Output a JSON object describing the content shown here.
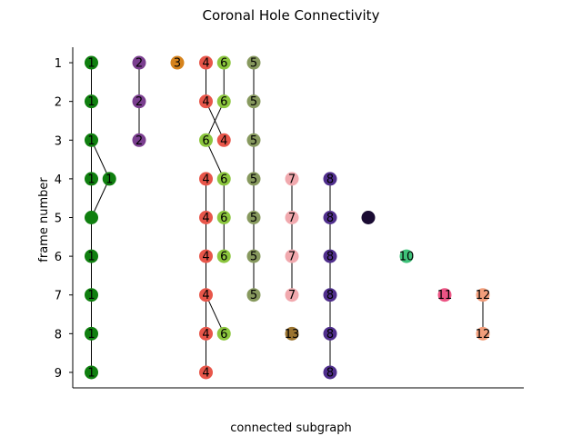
{
  "chart_data": {
    "type": "scatter",
    "title": "Coronal Hole Connectivity",
    "xlabel": "connected subgraph",
    "ylabel": "frame number",
    "ylim": [
      9.4,
      0.6
    ],
    "xlim": [
      0,
      11
    ],
    "yticks": [
      1,
      2,
      3,
      4,
      5,
      6,
      7,
      8,
      9
    ],
    "grid": false,
    "legend": "none",
    "series": [
      {
        "id": "1",
        "color": "#0f7f0f",
        "nodes": [
          {
            "x": 0.25,
            "y": 1,
            "label": "1"
          },
          {
            "x": 0.25,
            "y": 2,
            "label": "1"
          },
          {
            "x": 0.25,
            "y": 3,
            "label": "1"
          },
          {
            "x": 0.25,
            "y": 4,
            "label": "1"
          },
          {
            "x": 0.72,
            "y": 4,
            "label": "1"
          },
          {
            "x": 0.25,
            "y": 5,
            "label": ""
          },
          {
            "x": 0.25,
            "y": 6,
            "label": "1"
          },
          {
            "x": 0.25,
            "y": 7,
            "label": "1"
          },
          {
            "x": 0.25,
            "y": 8,
            "label": "1"
          },
          {
            "x": 0.25,
            "y": 9,
            "label": "1"
          }
        ],
        "edges": [
          [
            0,
            1
          ],
          [
            1,
            2
          ],
          [
            2,
            3
          ],
          [
            2,
            4
          ],
          [
            3,
            5
          ],
          [
            4,
            5
          ],
          [
            5,
            6
          ],
          [
            6,
            7
          ],
          [
            7,
            8
          ],
          [
            8,
            9
          ]
        ]
      },
      {
        "id": "2",
        "color": "#7a3e8f",
        "nodes": [
          {
            "x": 1.5,
            "y": 1,
            "label": "2"
          },
          {
            "x": 1.5,
            "y": 2,
            "label": "2"
          },
          {
            "x": 1.5,
            "y": 3,
            "label": "2"
          }
        ],
        "edges": [
          [
            0,
            1
          ],
          [
            1,
            2
          ]
        ]
      },
      {
        "id": "3",
        "color": "#d6831c",
        "nodes": [
          {
            "x": 2.5,
            "y": 1,
            "label": "3"
          }
        ],
        "edges": []
      },
      {
        "id": "4",
        "color": "#e8564a",
        "nodes": [
          {
            "x": 3.25,
            "y": 1,
            "label": "4"
          },
          {
            "x": 3.25,
            "y": 2,
            "label": "4"
          },
          {
            "x": 3.72,
            "y": 3,
            "label": "4"
          },
          {
            "x": 3.25,
            "y": 4,
            "label": "4"
          },
          {
            "x": 3.25,
            "y": 5,
            "label": "4"
          },
          {
            "x": 3.25,
            "y": 6,
            "label": "4"
          },
          {
            "x": 3.25,
            "y": 7,
            "label": "4"
          },
          {
            "x": 3.25,
            "y": 8,
            "label": "4"
          },
          {
            "x": 3.25,
            "y": 9,
            "label": "4"
          }
        ],
        "edges": [
          [
            0,
            1
          ],
          [
            1,
            2
          ],
          [
            3,
            4
          ],
          [
            4,
            5
          ],
          [
            5,
            6
          ],
          [
            6,
            7
          ],
          [
            7,
            8
          ]
        ]
      },
      {
        "id": "6",
        "color": "#8cc63e",
        "nodes": [
          {
            "x": 3.72,
            "y": 1,
            "label": "6"
          },
          {
            "x": 3.72,
            "y": 2,
            "label": "6"
          },
          {
            "x": 3.25,
            "y": 3,
            "label": "6"
          },
          {
            "x": 3.72,
            "y": 4,
            "label": "6"
          },
          {
            "x": 3.72,
            "y": 5,
            "label": "6"
          },
          {
            "x": 3.72,
            "y": 6,
            "label": "6"
          },
          {
            "x": 3.72,
            "y": 8,
            "label": "6"
          }
        ],
        "edges": [
          [
            0,
            1
          ],
          [
            1,
            2
          ],
          [
            2,
            3
          ],
          [
            3,
            4
          ],
          [
            4,
            5
          ]
        ]
      },
      {
        "id": "5",
        "color": "#87995e",
        "nodes": [
          {
            "x": 4.5,
            "y": 1,
            "label": "5"
          },
          {
            "x": 4.5,
            "y": 2,
            "label": "5"
          },
          {
            "x": 4.5,
            "y": 3,
            "label": "5"
          },
          {
            "x": 4.5,
            "y": 4,
            "label": "5"
          },
          {
            "x": 4.5,
            "y": 5,
            "label": "5"
          },
          {
            "x": 4.5,
            "y": 6,
            "label": "5"
          },
          {
            "x": 4.5,
            "y": 7,
            "label": "5"
          }
        ],
        "edges": [
          [
            0,
            1
          ],
          [
            1,
            2
          ],
          [
            2,
            3
          ],
          [
            3,
            4
          ],
          [
            4,
            5
          ],
          [
            5,
            6
          ]
        ]
      },
      {
        "id": "7",
        "color": "#f1a9ae",
        "nodes": [
          {
            "x": 5.5,
            "y": 4,
            "label": "7"
          },
          {
            "x": 5.5,
            "y": 5,
            "label": "7"
          },
          {
            "x": 5.5,
            "y": 6,
            "label": "7"
          },
          {
            "x": 5.5,
            "y": 7,
            "label": "7"
          }
        ],
        "edges": [
          [
            0,
            1
          ],
          [
            1,
            2
          ],
          [
            2,
            3
          ]
        ]
      },
      {
        "id": "13",
        "color": "#9b7430",
        "nodes": [
          {
            "x": 5.5,
            "y": 8,
            "label": "13"
          }
        ],
        "edges": []
      },
      {
        "id": "8",
        "color": "#4f2e8c",
        "nodes": [
          {
            "x": 6.5,
            "y": 4,
            "label": "8"
          },
          {
            "x": 6.5,
            "y": 5,
            "label": "8"
          },
          {
            "x": 6.5,
            "y": 6,
            "label": "8"
          },
          {
            "x": 6.5,
            "y": 7,
            "label": "8"
          },
          {
            "x": 6.5,
            "y": 8,
            "label": "8"
          },
          {
            "x": 6.5,
            "y": 9,
            "label": "8"
          }
        ],
        "edges": [
          [
            0,
            1
          ],
          [
            1,
            2
          ],
          [
            2,
            3
          ],
          [
            3,
            4
          ],
          [
            4,
            5
          ]
        ]
      },
      {
        "id": "9",
        "color": "#1a0b33",
        "nodes": [
          {
            "x": 7.5,
            "y": 5,
            "label": ""
          }
        ],
        "edges": []
      },
      {
        "id": "10",
        "color": "#3fc27a",
        "nodes": [
          {
            "x": 8.5,
            "y": 6,
            "label": "10"
          }
        ],
        "edges": []
      },
      {
        "id": "11",
        "color": "#ec5484",
        "nodes": [
          {
            "x": 9.5,
            "y": 7,
            "label": "11"
          }
        ],
        "edges": []
      },
      {
        "id": "12",
        "color": "#f29e7b",
        "nodes": [
          {
            "x": 10.5,
            "y": 7,
            "label": "12"
          },
          {
            "x": 10.5,
            "y": 8,
            "label": "12"
          }
        ],
        "edges": [
          [
            0,
            1
          ]
        ]
      }
    ],
    "cross_edges": [
      {
        "from": [
          "4",
          6
        ],
        "to": [
          "6",
          6
        ]
      }
    ]
  }
}
